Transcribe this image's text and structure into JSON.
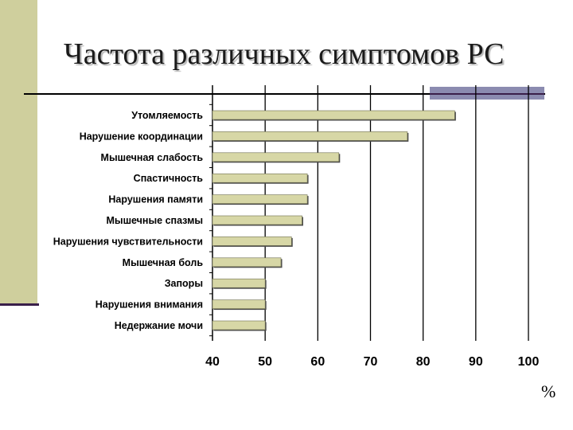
{
  "slide": {
    "title": "Частота различных симптомов РС",
    "unit_label": "%"
  },
  "colors": {
    "bar_fill": "#d7d7a6",
    "bar_shadow": "#4a4a4a",
    "side_bar": "#cfcf9d",
    "accent": "#8b8bb0"
  },
  "chart_data": {
    "type": "bar",
    "orientation": "horizontal",
    "title": "",
    "xlabel": "%",
    "ylabel": "",
    "xlim": [
      40,
      100
    ],
    "xticks": [
      40,
      50,
      60,
      70,
      80,
      90,
      100
    ],
    "grid": true,
    "legend": "none",
    "categories": [
      "Утомляемость",
      "Нарушение координации",
      "Мышечная слабость",
      "Спастичность",
      "Нарушения памяти",
      "Мышечные спазмы",
      "Нарушения чувствительности",
      "Мышечная боль",
      "Запоры",
      "Нарушения внимания",
      "Недержание мочи"
    ],
    "values": [
      86,
      77,
      64,
      58,
      58,
      57,
      55,
      53,
      50,
      50,
      50
    ]
  }
}
